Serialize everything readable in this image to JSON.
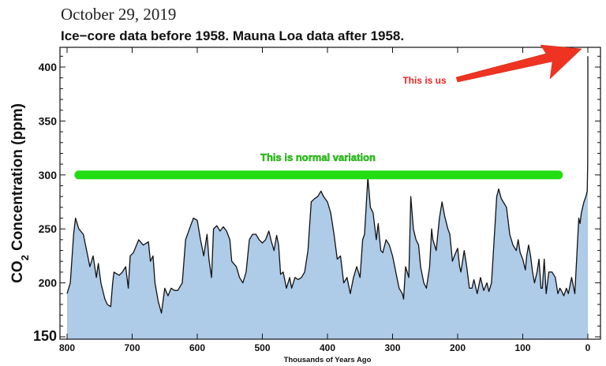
{
  "header": {
    "date": "October 29, 2019",
    "subtitle": "Ice−core data before 1958. Mauna Loa data after 1958."
  },
  "chart_data": {
    "type": "area",
    "title": "Ice−core data before 1958. Mauna Loa data after 1958.",
    "xlabel": "Thousands of Years Ago",
    "ylabel_main": "CO",
    "ylabel_sub": "2",
    "ylabel_rest": " Concentration (ppm)",
    "xlim": [
      800,
      0
    ],
    "ylim": [
      150,
      418
    ],
    "x_reversed": true,
    "grid": false,
    "xticks": [
      "800",
      "700",
      "600",
      "500",
      "400",
      "300",
      "200",
      "100",
      "0"
    ],
    "yticks": [
      "150",
      "200",
      "250",
      "300",
      "350",
      "400"
    ],
    "colors": {
      "fill": "#aecbe8",
      "line": "#111111",
      "normal_band": "#22dd11",
      "arrow": "#ee3322",
      "us_text": "#ee2222",
      "normal_text": "#22dd11"
    },
    "annotations": {
      "normal_label": "This is normal variation",
      "normal_band": {
        "from_kyr": 782,
        "to_kyr": 45,
        "ppm": 300
      },
      "us_label": "This is us",
      "us_arrow_target": {
        "kyr": 0,
        "ppm": 410
      }
    },
    "x": [
      800,
      795,
      790,
      787,
      782,
      775,
      770,
      765,
      760,
      755,
      752,
      748,
      742,
      738,
      733,
      730,
      728,
      720,
      715,
      710,
      706,
      703,
      698,
      690,
      683,
      675,
      672,
      668,
      665,
      660,
      655,
      650,
      645,
      640,
      635,
      630,
      623,
      618,
      612,
      606,
      600,
      595,
      590,
      585,
      582,
      578,
      575,
      570,
      565,
      560,
      555,
      550,
      547,
      540,
      535,
      530,
      525,
      520,
      515,
      510,
      505,
      500,
      495,
      490,
      486,
      482,
      478,
      475,
      472,
      468,
      463,
      458,
      455,
      450,
      445,
      440,
      435,
      430,
      425,
      420,
      415,
      410,
      406,
      400,
      395,
      390,
      385,
      380,
      375,
      370,
      365,
      360,
      355,
      350,
      346,
      343,
      338,
      334,
      330,
      325,
      322,
      318,
      315,
      310,
      305,
      300,
      295,
      290,
      285,
      283,
      280,
      275,
      272,
      268,
      264,
      260,
      257,
      252,
      248,
      243,
      240,
      238,
      233,
      228,
      224,
      220,
      215,
      212,
      208,
      205,
      200,
      197,
      195,
      190,
      186,
      182,
      178,
      175,
      170,
      165,
      160,
      155,
      152,
      148,
      145,
      140,
      137,
      133,
      130,
      125,
      120,
      115,
      110,
      107,
      104,
      100,
      96,
      94,
      91,
      88,
      85,
      82,
      78,
      75,
      72,
      70,
      67,
      64,
      60,
      55,
      50,
      46,
      43,
      40,
      37,
      33,
      30,
      25,
      20,
      17,
      14,
      12,
      10,
      6,
      3,
      1,
      0.2,
      0.05,
      0
    ],
    "y": [
      190,
      200,
      245,
      260,
      250,
      245,
      230,
      215,
      225,
      205,
      218,
      200,
      185,
      180,
      178,
      200,
      210,
      207,
      210,
      215,
      195,
      225,
      228,
      240,
      235,
      238,
      220,
      225,
      200,
      183,
      172,
      195,
      188,
      195,
      193,
      193,
      200,
      240,
      250,
      260,
      258,
      240,
      225,
      245,
      222,
      205,
      250,
      253,
      248,
      252,
      248,
      240,
      220,
      215,
      205,
      200,
      210,
      240,
      245,
      245,
      240,
      237,
      240,
      248,
      238,
      230,
      244,
      235,
      208,
      210,
      195,
      205,
      195,
      205,
      203,
      205,
      210,
      230,
      275,
      278,
      280,
      285,
      280,
      275,
      265,
      245,
      222,
      225,
      200,
      205,
      190,
      205,
      215,
      205,
      240,
      245,
      298,
      270,
      265,
      240,
      255,
      230,
      228,
      240,
      235,
      225,
      210,
      195,
      190,
      185,
      215,
      205,
      280,
      250,
      240,
      235,
      215,
      200,
      195,
      215,
      250,
      240,
      230,
      260,
      275,
      262,
      250,
      245,
      220,
      225,
      232,
      215,
      210,
      230,
      215,
      195,
      195,
      203,
      190,
      205,
      193,
      200,
      192,
      200,
      230,
      280,
      287,
      278,
      275,
      270,
      245,
      235,
      230,
      240,
      228,
      222,
      212,
      225,
      235,
      225,
      210,
      200,
      210,
      222,
      195,
      195,
      222,
      190,
      210,
      210,
      205,
      190,
      195,
      192,
      188,
      195,
      190,
      205,
      190,
      225,
      260,
      255,
      265,
      275,
      280,
      285,
      310,
      350,
      410
    ]
  }
}
